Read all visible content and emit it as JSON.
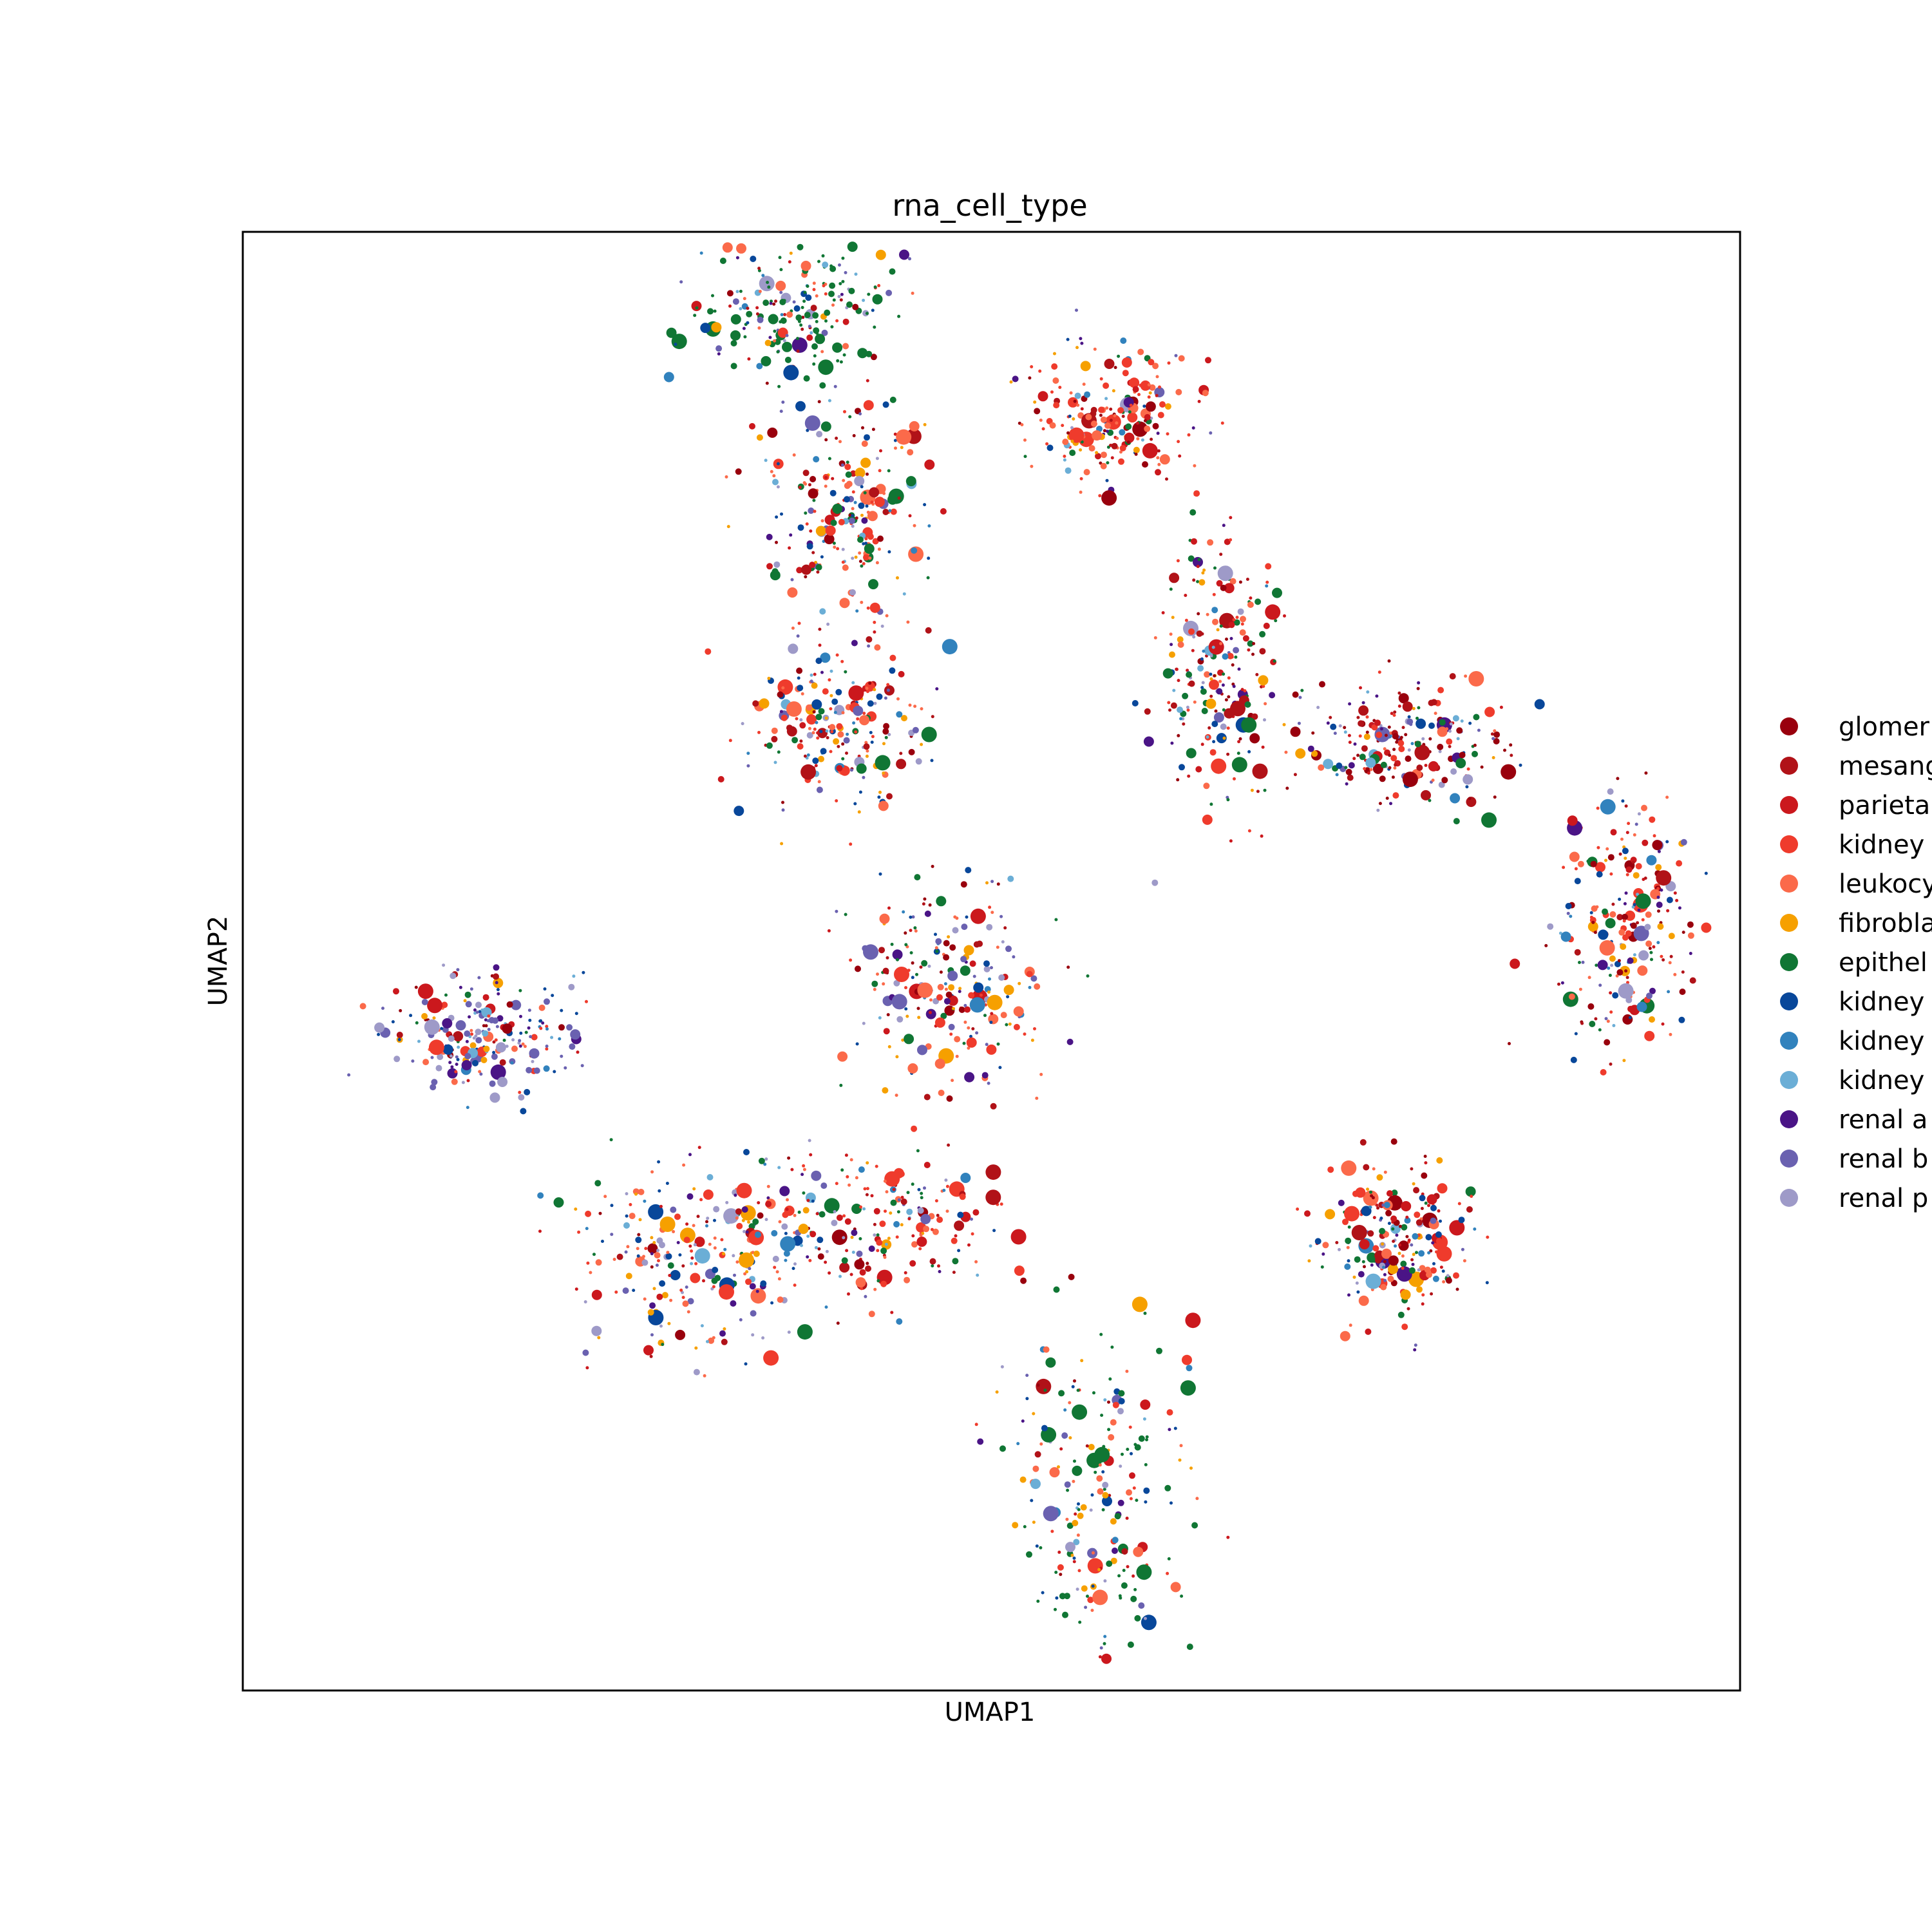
{
  "chart_data": {
    "type": "scatter",
    "title": "rna_cell_type",
    "xlabel": "UMAP1",
    "ylabel": "UMAP2",
    "xticks": false,
    "yticks": false,
    "legend": {
      "placement": "right-outside",
      "entries": [
        {
          "label": "glomer",
          "color": "#99000d"
        },
        {
          "label": "mesang",
          "color": "#b11218"
        },
        {
          "label": "parieta",
          "color": "#cb181d"
        },
        {
          "label": "kidney",
          "color": "#ef3b2c"
        },
        {
          "label": "leukocy",
          "color": "#fb6a4a"
        },
        {
          "label": "fibrobla",
          "color": "#f6a000"
        },
        {
          "label": "epithel",
          "color": "#107634"
        },
        {
          "label": "kidney",
          "color": "#08479a"
        },
        {
          "label": "kidney",
          "color": "#3182bd"
        },
        {
          "label": "kidney",
          "color": "#6baed6"
        },
        {
          "label": "renal a",
          "color": "#4a1486"
        },
        {
          "label": "renal b",
          "color": "#6a61b0"
        },
        {
          "label": "renal p",
          "color": "#9e9ac8"
        }
      ]
    },
    "clusters": [
      {
        "cx": 0.57,
        "cy": 0.87,
        "rx": 0.06,
        "ry": 0.11,
        "w": [
          1,
          1,
          2,
          3,
          3,
          4,
          10,
          2,
          1,
          1,
          1,
          1,
          3
        ]
      },
      {
        "cx": 0.3,
        "cy": 0.7,
        "rx": 0.08,
        "ry": 0.06,
        "w": [
          1,
          1,
          2,
          4,
          5,
          3,
          1,
          2,
          1,
          1,
          1,
          2,
          3
        ]
      },
      {
        "cx": 0.16,
        "cy": 0.55,
        "rx": 0.06,
        "ry": 0.04,
        "w": [
          1,
          1,
          1,
          2,
          2,
          1,
          1,
          5,
          2,
          1,
          3,
          6,
          3
        ]
      },
      {
        "cx": 0.42,
        "cy": 0.68,
        "rx": 0.08,
        "ry": 0.05,
        "w": [
          3,
          2,
          4,
          5,
          3,
          1,
          2,
          2,
          1,
          1,
          1,
          1,
          1
        ]
      },
      {
        "cx": 0.4,
        "cy": 0.34,
        "rx": 0.06,
        "ry": 0.06,
        "w": [
          2,
          2,
          3,
          4,
          4,
          3,
          2,
          3,
          2,
          1,
          1,
          2,
          2
        ]
      },
      {
        "cx": 0.4,
        "cy": 0.19,
        "rx": 0.05,
        "ry": 0.07,
        "w": [
          2,
          1,
          2,
          3,
          3,
          2,
          3,
          2,
          1,
          1,
          1,
          1,
          1
        ]
      },
      {
        "cx": 0.65,
        "cy": 0.3,
        "rx": 0.04,
        "ry": 0.09,
        "w": [
          3,
          3,
          3,
          4,
          2,
          2,
          5,
          2,
          1,
          1,
          2,
          1,
          2
        ]
      },
      {
        "cx": 0.77,
        "cy": 0.35,
        "rx": 0.07,
        "ry": 0.04,
        "w": [
          9,
          4,
          3,
          3,
          2,
          1,
          2,
          2,
          1,
          1,
          2,
          2,
          2
        ]
      },
      {
        "cx": 0.37,
        "cy": 0.05,
        "rx": 0.06,
        "ry": 0.06,
        "w": [
          1,
          1,
          1,
          2,
          2,
          1,
          12,
          1,
          1,
          1,
          1,
          2,
          1
        ]
      },
      {
        "cx": 0.58,
        "cy": 0.13,
        "rx": 0.06,
        "ry": 0.05,
        "w": [
          3,
          2,
          5,
          7,
          6,
          3,
          2,
          1,
          1,
          1,
          1,
          2,
          2
        ]
      },
      {
        "cx": 0.47,
        "cy": 0.52,
        "rx": 0.07,
        "ry": 0.07,
        "w": [
          3,
          2,
          3,
          4,
          4,
          3,
          3,
          3,
          1,
          1,
          1,
          2,
          2
        ]
      },
      {
        "cx": 0.77,
        "cy": 0.69,
        "rx": 0.05,
        "ry": 0.05,
        "w": [
          2,
          2,
          2,
          3,
          3,
          2,
          2,
          2,
          1,
          1,
          1,
          1,
          1
        ]
      },
      {
        "cx": 0.92,
        "cy": 0.48,
        "rx": 0.05,
        "ry": 0.08,
        "w": [
          3,
          3,
          2,
          3,
          3,
          2,
          2,
          2,
          1,
          1,
          1,
          1,
          1
        ]
      }
    ]
  }
}
